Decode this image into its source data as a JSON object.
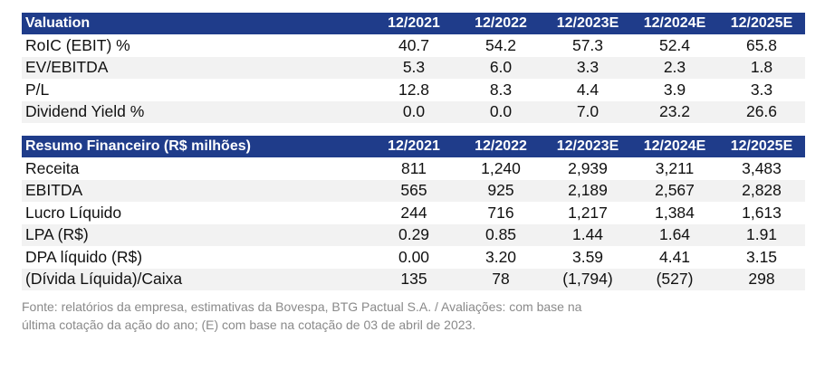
{
  "valuation": {
    "header": [
      "Valuation",
      "12/2021",
      "12/2022",
      "12/2023E",
      "12/2024E",
      "12/2025E"
    ],
    "rows": [
      [
        "RoIC (EBIT) %",
        "40.7",
        "54.2",
        "57.3",
        "52.4",
        "65.8"
      ],
      [
        "EV/EBITDA",
        "5.3",
        "6.0",
        "3.3",
        "2.3",
        "1.8"
      ],
      [
        "P/L",
        "12.8",
        "8.3",
        "4.4",
        "3.9",
        "3.3"
      ],
      [
        "Dividend Yield %",
        "0.0",
        "0.0",
        "7.0",
        "23.2",
        "26.6"
      ]
    ]
  },
  "resumo": {
    "header": [
      "Resumo Financeiro (R$ milhões)",
      "12/2021",
      "12/2022",
      "12/2023E",
      "12/2024E",
      "12/2025E"
    ],
    "rows": [
      [
        "Receita",
        "811",
        "1,240",
        "2,939",
        "3,211",
        "3,483"
      ],
      [
        "EBITDA",
        "565",
        "925",
        "2,189",
        "2,567",
        "2,828"
      ],
      [
        "Lucro Líquido",
        "244",
        "716",
        "1,217",
        "1,384",
        "1,613"
      ],
      [
        "LPA (R$)",
        "0.29",
        "0.85",
        "1.44",
        "1.64",
        "1.91"
      ],
      [
        "DPA líquido (R$)",
        "0.00",
        "3.20",
        "3.59",
        "4.41",
        "3.15"
      ],
      [
        "(Dívida Líquida)/Caixa",
        "135",
        "78",
        "(1,794)",
        "(527)",
        "298"
      ]
    ]
  },
  "footnote": {
    "line1": "Fonte: relatórios da empresa, estimativas da Bovespa, BTG Pactual S.A. / Avaliações: com base na",
    "line2": "última cotação da ação do ano; (E) com base na cotação de 03 de abril de 2023."
  }
}
